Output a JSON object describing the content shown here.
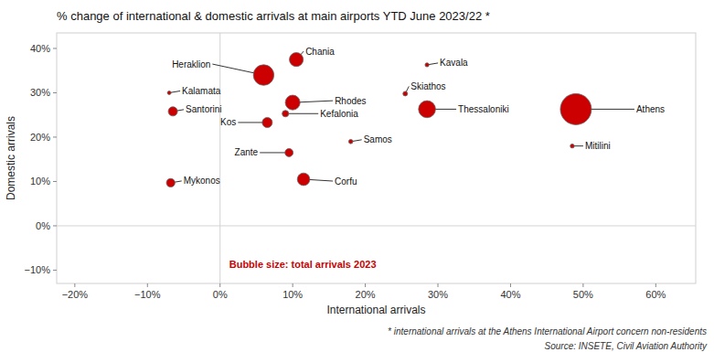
{
  "chart_data": {
    "type": "scatter",
    "title": "% change of international & domestic arrivals at main airports YTD June 2023/22 *",
    "xlabel": "International arrivals",
    "ylabel": "Domestic arrivals",
    "annotation": "Bubble size: total arrivals 2023",
    "footnotes": [
      "* international arrivals at the Athens International Airport concern non-residents",
      "Source: INSETE, Civil Aviation Authority"
    ],
    "labels": [
      "Heraklion",
      "Chania",
      "Rhodes",
      "Kefalonia",
      "Kos",
      "Zante",
      "Corfu",
      "Samos",
      "Kavala",
      "Skiathos",
      "Thessaloniki",
      "Athens",
      "Mitilini",
      "Kalamata",
      "Santorini",
      "Mykonos"
    ],
    "x": [
      0.06,
      0.105,
      0.1,
      0.09,
      0.065,
      0.095,
      0.115,
      0.18,
      0.285,
      0.255,
      0.285,
      0.49,
      0.485,
      -0.07,
      -0.065,
      -0.068
    ],
    "values": [
      0.34,
      0.375,
      0.278,
      0.253,
      0.233,
      0.165,
      0.105,
      0.19,
      0.363,
      0.298,
      0.263,
      0.263,
      0.18,
      0.3,
      0.258,
      0.097
    ],
    "sizes": [
      7000000,
      3200000,
      3600000,
      700000,
      1700000,
      1100000,
      2600000,
      300000,
      260000,
      350000,
      4800000,
      16000000,
      280000,
      180000,
      1400000,
      1200000
    ],
    "color": "#CC0000",
    "xlim": [
      -0.225,
      0.655
    ],
    "ylim": [
      -0.13,
      0.435
    ],
    "xticks": [
      {
        "value": -0.2,
        "label": "−20%"
      },
      {
        "value": -0.1,
        "label": "−10%"
      },
      {
        "value": 0.0,
        "label": "0%"
      },
      {
        "value": 0.1,
        "label": "10%"
      },
      {
        "value": 0.2,
        "label": "20%"
      },
      {
        "value": 0.3,
        "label": "30%"
      },
      {
        "value": 0.4,
        "label": "40%"
      },
      {
        "value": 0.5,
        "label": "50%"
      },
      {
        "value": 0.6,
        "label": "60%"
      }
    ],
    "yticks": [
      {
        "value": -0.1,
        "label": "−10%"
      },
      {
        "value": 0.0,
        "label": "0%"
      },
      {
        "value": 0.1,
        "label": "10%"
      },
      {
        "value": 0.2,
        "label": "20%"
      },
      {
        "value": 0.3,
        "label": "30%"
      },
      {
        "value": 0.4,
        "label": "40%"
      }
    ],
    "grid": false
  }
}
